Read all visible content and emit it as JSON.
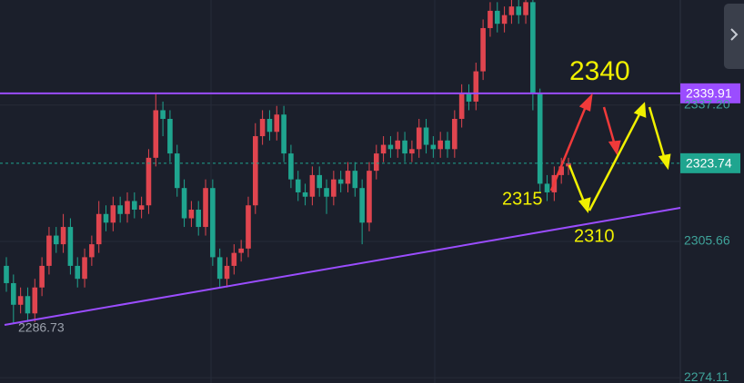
{
  "chart_data": {
    "type": "candlestick",
    "categories": [
      null,
      null,
      null,
      null,
      null,
      null,
      null,
      null,
      null,
      null,
      null,
      null,
      null,
      null,
      null,
      null,
      null,
      null,
      null,
      null,
      null,
      null,
      null,
      null,
      null,
      null,
      null,
      null,
      null,
      null,
      null,
      null,
      null,
      null,
      null,
      null,
      null,
      null,
      null,
      null,
      null,
      null,
      null,
      null,
      null,
      null,
      null,
      null,
      null,
      null,
      null,
      null,
      null,
      null,
      null,
      null,
      null,
      null,
      null,
      null,
      null,
      null,
      null,
      null,
      null,
      null,
      null,
      null,
      null,
      null,
      null,
      null,
      null,
      null,
      null,
      null,
      null,
      null,
      null,
      null
    ],
    "open": [
      2300,
      2296,
      2291,
      2293,
      2289,
      2295,
      2300,
      2307,
      2305,
      2309,
      2300,
      2297,
      2302,
      2305,
      2312,
      2310,
      2314,
      2312,
      2315,
      2313,
      2314,
      2325,
      2336,
      2334,
      2326,
      2318,
      2311,
      2313,
      2309,
      2318,
      2302,
      2297,
      2300,
      2303,
      2304,
      2314,
      2330,
      2334,
      2331,
      2335,
      2326,
      2320,
      2317,
      2316,
      2321,
      2318,
      2316,
      2320,
      2319,
      2322,
      2318,
      2310,
      2322,
      2326,
      2328,
      2327,
      2329,
      2326,
      2327,
      2332,
      2328,
      2327,
      2329,
      2327,
      2334,
      2340,
      2338,
      2345,
      2355,
      2359,
      2356,
      2358,
      2360,
      2358,
      2361,
      2340,
      2319,
      2317,
      2321,
      2323
    ],
    "high": [
      2302,
      2298,
      2295,
      2295,
      2297,
      2302,
      2309,
      2309,
      2312,
      2311,
      2302,
      2304,
      2307,
      2315,
      2314,
      2316,
      2316,
      2317,
      2317,
      2316,
      2327,
      2340,
      2338,
      2336,
      2328,
      2320,
      2315,
      2315,
      2320,
      2320,
      2304,
      2302,
      2305,
      2306,
      2316,
      2333,
      2336,
      2336,
      2337,
      2337,
      2328,
      2322,
      2319,
      2323,
      2323,
      2320,
      2322,
      2322,
      2324,
      2324,
      2320,
      2324,
      2328,
      2330,
      2330,
      2331,
      2331,
      2329,
      2334,
      2334,
      2330,
      2331,
      2331,
      2336,
      2342,
      2342,
      2347,
      2357,
      2361,
      2361,
      2360,
      2362,
      2362,
      2364,
      2364,
      2341,
      2321,
      2323,
      2325,
      2325
    ],
    "low": [
      2294,
      2286.73,
      2289,
      2287,
      2287,
      2293,
      2298,
      2303,
      2303,
      2298,
      2295,
      2295,
      2300,
      2303,
      2308,
      2308,
      2310,
      2310,
      2311,
      2311,
      2312,
      2323,
      2330,
      2324,
      2316,
      2309,
      2309,
      2307,
      2307,
      2300,
      2295,
      2295,
      2298,
      2301,
      2302,
      2312,
      2328,
      2329,
      2329,
      2324,
      2318,
      2315,
      2314,
      2314,
      2316,
      2312,
      2314,
      2317,
      2317,
      2316,
      2305,
      2308,
      2320,
      2324,
      2325,
      2325,
      2324,
      2324,
      2325,
      2326,
      2325,
      2325,
      2325,
      2325,
      2332,
      2336,
      2336,
      2343,
      2353,
      2354,
      2354,
      2356,
      2356,
      2356,
      2336,
      2317,
      2315,
      2315,
      2319,
      2321
    ],
    "close": [
      2296,
      2291,
      2293,
      2289,
      2295,
      2300,
      2307,
      2305,
      2309,
      2300,
      2297,
      2302,
      2305,
      2312,
      2310,
      2314,
      2312,
      2315,
      2313,
      2314,
      2325,
      2336,
      2334,
      2326,
      2318,
      2311,
      2313,
      2309,
      2318,
      2302,
      2297,
      2300,
      2303,
      2304,
      2314,
      2330,
      2334,
      2331,
      2335,
      2326,
      2320,
      2317,
      2316,
      2321,
      2318,
      2316,
      2320,
      2319,
      2322,
      2318,
      2310,
      2322,
      2326,
      2328,
      2327,
      2329,
      2326,
      2327,
      2332,
      2328,
      2327,
      2329,
      2327,
      2334,
      2340,
      2338,
      2345,
      2355,
      2359,
      2356,
      2358,
      2360,
      2358,
      2361,
      2340,
      2319,
      2317,
      2321,
      2323,
      2323.74
    ],
    "up_color": "#e0454f",
    "down_color": "#1fa58f",
    "ylim": [
      2272.9,
      2361.5
    ],
    "yticks": [
      {
        "value": 2337.2,
        "label": "2337.20"
      },
      2305.66,
      2274.11
    ],
    "grid": true,
    "hline": {
      "value": 2339.91,
      "color": "#9b4dff"
    },
    "annotations": [
      "2340",
      "2315",
      "2310"
    ]
  }
}
